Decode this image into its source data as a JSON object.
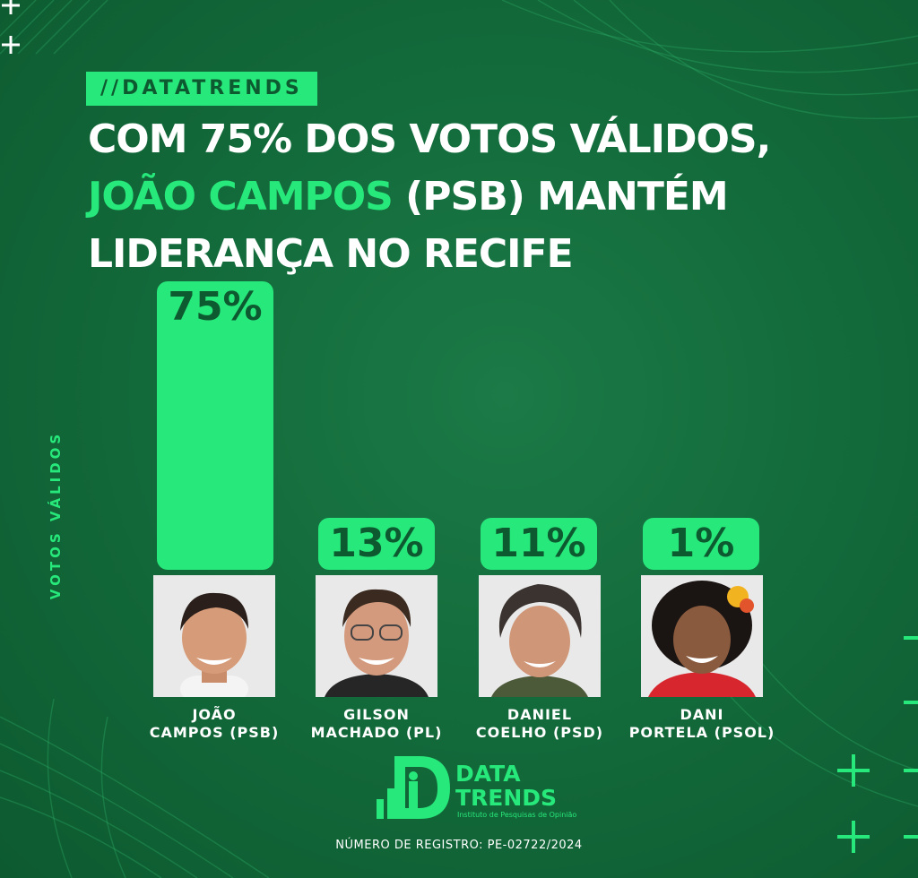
{
  "brand_tag": "//DATATRENDS",
  "headline": {
    "line1": "COM 75% DOS VOTOS VÁLIDOS,",
    "line2_highlight": "JOÃO CAMPOS",
    "line2_rest": " (PSB) MANTÉM",
    "line3": "LIDERANÇA NO RECIFE"
  },
  "colors": {
    "accent": "#27e87a",
    "background": "#136b3b",
    "dark_text": "#0d5a30"
  },
  "chart_data": {
    "type": "bar",
    "ylabel": "VOTOS VÁLIDOS",
    "categories_line1": [
      "JOÃO",
      "GILSON",
      "DANIEL",
      "DANI"
    ],
    "categories_line2": [
      "CAMPOS (PSB)",
      "MACHADO (PL)",
      "COELHO (PSD)",
      "PORTELA (PSOL)"
    ],
    "values": [
      75,
      13,
      11,
      1
    ],
    "value_labels": [
      "75%",
      "13%",
      "11%",
      "1%"
    ],
    "ylim": [
      0,
      75
    ]
  },
  "logo": {
    "line1": "DATA",
    "line2": "TRENDS",
    "subtitle": "Instituto de Pesquisas de Opinião"
  },
  "footer": {
    "registro": "NÚMERO DE REGISTRO:  PE-02722/2024"
  }
}
